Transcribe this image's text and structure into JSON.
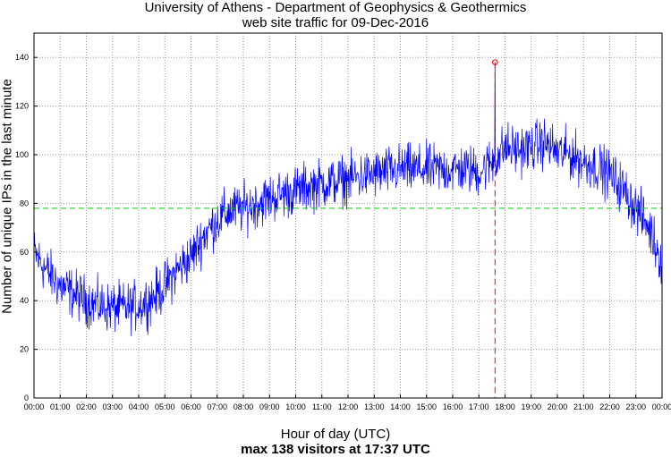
{
  "chart_data": {
    "type": "line",
    "title": "University of Athens - Department of Geophysics & Geothermics",
    "subtitle": "web site traffic for 09-Dec-2016",
    "xlabel": "Hour of day (UTC)",
    "ylabel": "Number of unique IPs in the last minute",
    "footer": "max 138 visitors at 17:37 UTC",
    "xlim": [
      0,
      24
    ],
    "ylim": [
      0,
      150
    ],
    "yticks": [
      0,
      20,
      40,
      60,
      80,
      100,
      120,
      140
    ],
    "xtick_labels": [
      "00:00",
      "01:00",
      "02:00",
      "03:00",
      "04:00",
      "05:00",
      "06:00",
      "07:00",
      "08:00",
      "09:00",
      "10:00",
      "11:00",
      "12:00",
      "13:00",
      "14:00",
      "15:00",
      "16:00",
      "17:00",
      "18:00",
      "19:00",
      "20:00",
      "21:00",
      "22:00",
      "23:00",
      "00:00"
    ],
    "grid": true,
    "mean_line": 78,
    "max": {
      "value": 138,
      "hour": 17.617,
      "label": "17:37"
    },
    "series": [
      {
        "name": "visitors",
        "color": "#0000ff",
        "hours": [
          0,
          0.5,
          1,
          1.5,
          2,
          2.5,
          3,
          3.5,
          4,
          4.5,
          5,
          5.5,
          6,
          6.5,
          7,
          7.5,
          8,
          8.5,
          9,
          9.5,
          10,
          10.5,
          11,
          11.5,
          12,
          12.5,
          13,
          13.5,
          14,
          14.5,
          15,
          15.5,
          16,
          16.5,
          17,
          17.5,
          18,
          18.5,
          19,
          19.5,
          20,
          20.5,
          21,
          21.5,
          22,
          22.5,
          23,
          23.5,
          24
        ],
        "values": [
          60,
          52,
          46,
          43,
          40,
          38,
          37,
          37,
          38,
          41,
          46,
          53,
          58,
          67,
          73,
          77,
          78,
          80,
          82,
          84,
          85,
          87,
          88,
          89,
          90,
          91,
          92,
          93,
          94,
          94,
          94,
          94,
          94,
          94,
          93,
          97,
          103,
          102,
          103,
          105,
          101,
          100,
          97,
          95,
          92,
          86,
          78,
          70,
          56
        ]
      }
    ],
    "colors": {
      "mean_line": "#00cc00",
      "max_marker": "#ff0000",
      "grid": "#9a9a9a"
    }
  }
}
